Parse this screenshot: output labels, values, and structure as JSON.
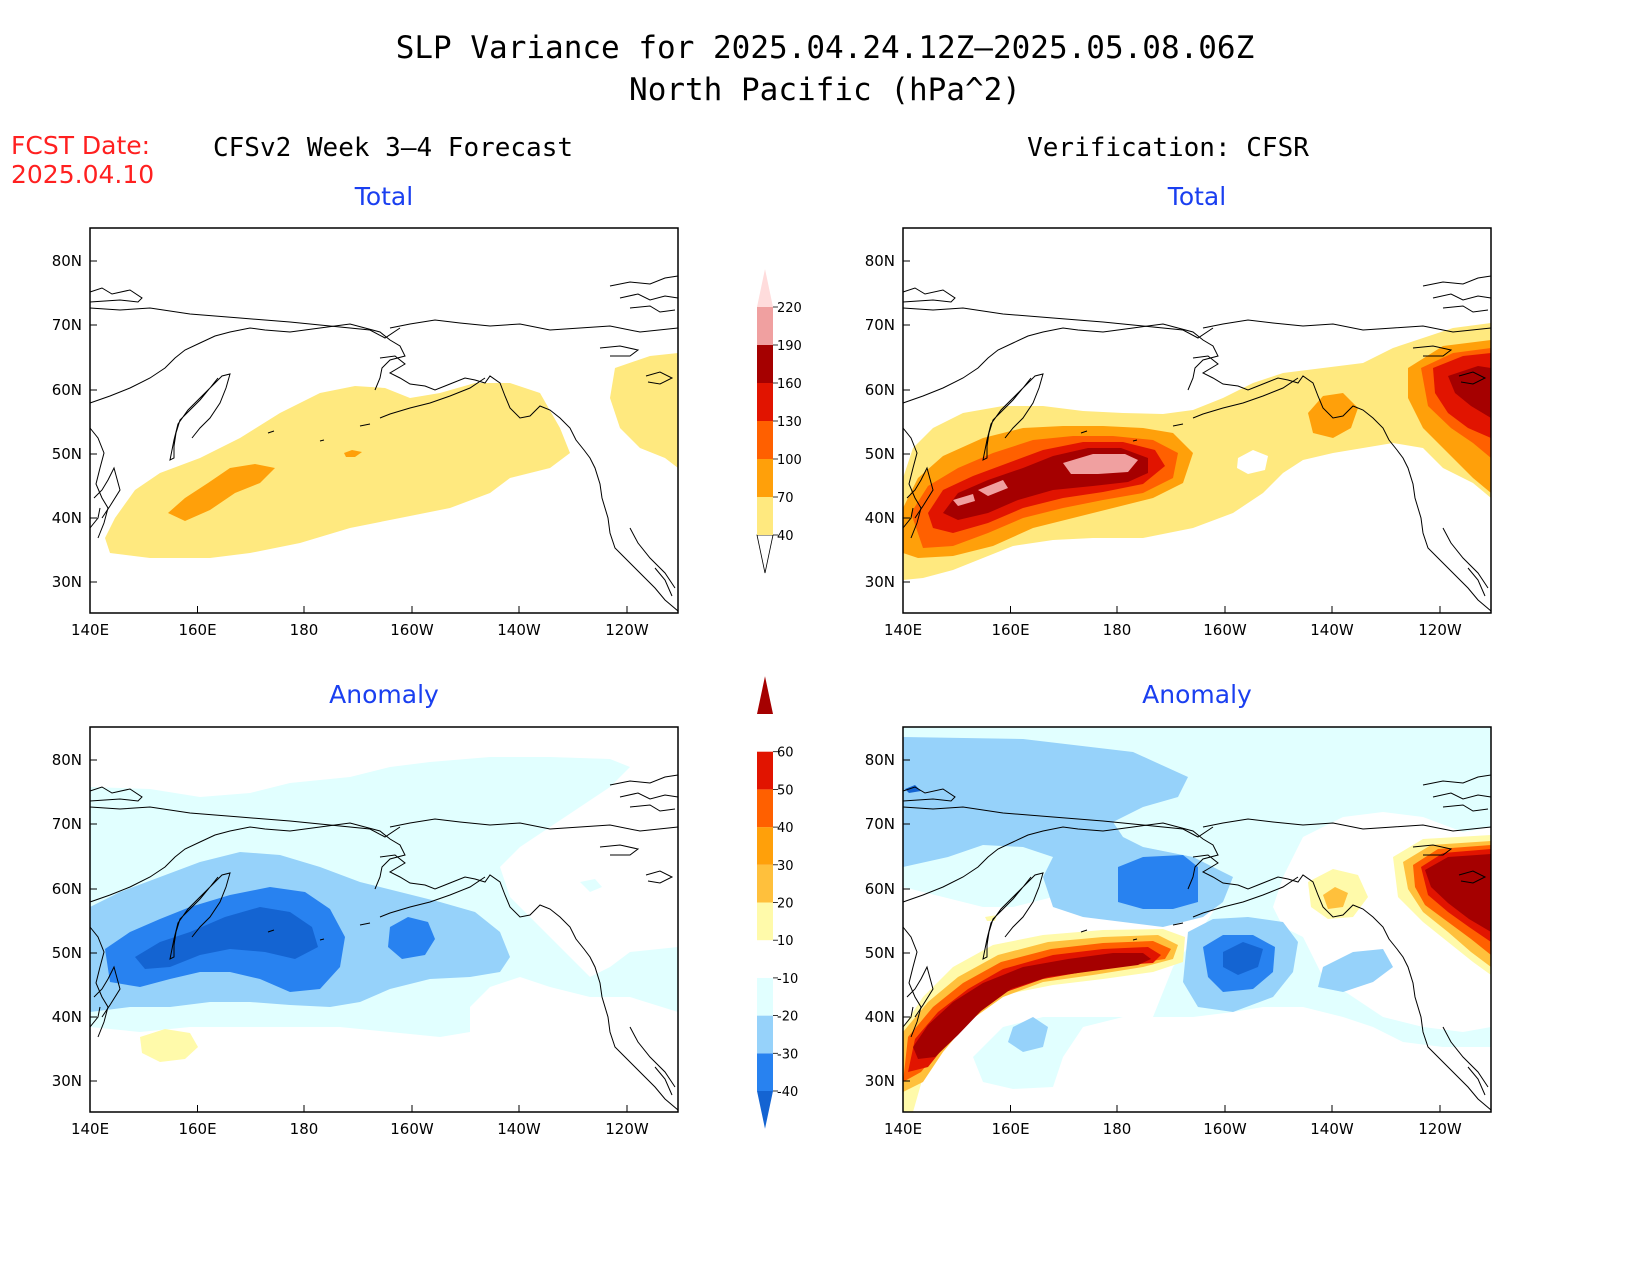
{
  "header": {
    "title_line1": "SLP Variance for 2025.04.24.12Z–2025.05.08.06Z",
    "title_line2": "North Pacific (hPa^2)",
    "fcst_label": "FCST Date:",
    "fcst_date": "2025.04.10"
  },
  "columns": {
    "left_title": "CFSv2 Week 3–4 Forecast",
    "right_title": "Verification: CFSR"
  },
  "panels": {
    "top_left_title": "Total",
    "top_right_title": "Total",
    "bottom_left_title": "Anomaly",
    "bottom_right_title": "Anomaly"
  },
  "axes": {
    "lon_labels": [
      "140E",
      "160E",
      "180",
      "160W",
      "140W",
      "120W"
    ],
    "lat_labels": [
      "80N",
      "70N",
      "60N",
      "50N",
      "40N",
      "30N"
    ]
  },
  "colorbar_total": {
    "levels": [
      "40",
      "70",
      "100",
      "130",
      "160",
      "190",
      "220"
    ],
    "colors": [
      "#ffe97f",
      "#ffa00a",
      "#ff6000",
      "#e11400",
      "#a50000",
      "#f0a0a0",
      "#ffdcdc"
    ]
  },
  "colorbar_anomaly": {
    "levels": [
      "-40",
      "-30",
      "-20",
      "-10",
      "10",
      "20",
      "30",
      "40",
      "50",
      "60"
    ],
    "colors": [
      "#1464d2",
      "#2882f0",
      "#96d2fa",
      "#e1ffff",
      "#ffffff",
      "#fffaaa",
      "#ffc03c",
      "#ffa00a",
      "#ff6000",
      "#e11400",
      "#a50000"
    ]
  }
}
